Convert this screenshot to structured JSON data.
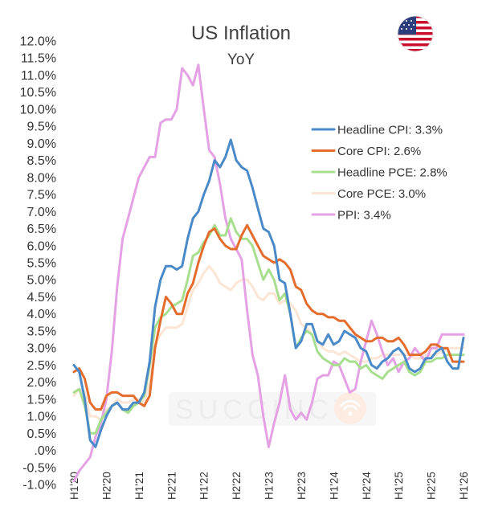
{
  "chart_data": {
    "type": "line",
    "title": "US Inflation",
    "subtitle": "YoY",
    "ylim": [
      -1.0,
      12.0
    ],
    "y_ticks": [
      12,
      11.5,
      11,
      10.5,
      10,
      9.5,
      9,
      8.5,
      8,
      7.5,
      7,
      6.5,
      6,
      5.5,
      5,
      4.5,
      4,
      3.5,
      3,
      2.5,
      2,
      1.5,
      1,
      0.5,
      0,
      -0.5,
      -1
    ],
    "y_tick_labels": [
      "12.0%",
      "11.5%",
      "11.0%",
      "10.5%",
      "10.0%",
      "9.5%",
      "9.0%",
      "8.5%",
      "8.0%",
      "7.5%",
      "7.0%",
      "6.5%",
      "6.0%",
      "5.5%",
      "5.0%",
      "4.5%",
      "4.0%",
      "3.5%",
      "3.0%",
      "2.5%",
      "2.0%",
      "1.5%",
      "1.0%",
      "0.5%",
      ".0%",
      "-0.5%",
      "-1.0%"
    ],
    "x_start": "Jan 2020",
    "x_ticks": [
      "H1'20",
      "H2'20",
      "H1'21",
      "H2'21",
      "H1'22",
      "H2'22",
      "H1'23",
      "H2'23",
      "H1'24",
      "H2'24",
      "H1'25",
      "H2'25",
      "H1'26"
    ],
    "x_tick_positions": [
      0,
      6,
      12,
      18,
      24,
      30,
      36,
      42,
      48,
      54,
      60,
      66,
      72
    ],
    "x_range": [
      0,
      72
    ],
    "series": [
      {
        "name": "Headline CPI",
        "legend": "Headline CPI: 3.3%",
        "color": "#4a8ac8",
        "values": [
          2.5,
          2.3,
          1.5,
          0.3,
          0.1,
          0.6,
          1.0,
          1.3,
          1.4,
          1.2,
          1.2,
          1.4,
          1.4,
          1.7,
          2.6,
          4.2,
          5.0,
          5.4,
          5.4,
          5.3,
          5.4,
          6.2,
          6.8,
          7.0,
          7.5,
          7.9,
          8.5,
          8.3,
          8.6,
          9.1,
          8.5,
          8.3,
          8.2,
          7.7,
          7.1,
          6.5,
          6.4,
          6.0,
          5.0,
          4.9,
          4.0,
          3.0,
          3.2,
          3.7,
          3.7,
          3.2,
          3.1,
          3.4,
          3.1,
          3.2,
          3.5,
          3.4,
          3.3,
          3.0,
          2.9,
          2.5,
          2.4,
          2.6,
          2.7,
          2.9,
          3.0,
          2.8,
          2.4,
          2.3,
          2.4,
          2.7,
          2.7,
          2.9,
          3.0,
          2.6,
          2.4,
          2.4,
          3.3
        ]
      },
      {
        "name": "Core CPI",
        "legend": "Core CPI: 2.6%",
        "color": "#e46c2c",
        "values": [
          2.3,
          2.4,
          2.1,
          1.4,
          1.2,
          1.2,
          1.6,
          1.7,
          1.7,
          1.6,
          1.6,
          1.6,
          1.4,
          1.3,
          1.6,
          3.0,
          3.8,
          4.5,
          4.3,
          4.0,
          4.0,
          4.6,
          4.9,
          5.5,
          6.0,
          6.4,
          6.5,
          6.2,
          6.0,
          5.9,
          5.9,
          6.3,
          6.6,
          6.3,
          6.0,
          5.7,
          5.6,
          5.5,
          5.6,
          5.5,
          5.3,
          4.8,
          4.7,
          4.3,
          4.1,
          4.0,
          4.0,
          3.9,
          3.9,
          3.8,
          3.8,
          3.6,
          3.4,
          3.3,
          3.2,
          3.2,
          3.3,
          3.3,
          3.2,
          3.2,
          3.3,
          3.1,
          2.8,
          2.8,
          2.8,
          2.9,
          3.1,
          3.1,
          3.0,
          3.0,
          2.6,
          2.6,
          2.6
        ]
      },
      {
        "name": "Headline PCE",
        "legend": "Headline PCE: 2.8%",
        "color": "#a7df8f",
        "values": [
          1.7,
          1.8,
          1.3,
          0.5,
          0.5,
          0.9,
          1.1,
          1.3,
          1.4,
          1.2,
          1.1,
          1.3,
          1.4,
          1.6,
          2.5,
          3.6,
          3.9,
          4.0,
          4.2,
          4.3,
          4.4,
          5.0,
          5.7,
          5.8,
          6.1,
          6.3,
          6.6,
          6.3,
          6.3,
          6.8,
          6.4,
          6.2,
          6.2,
          6.0,
          5.5,
          5.0,
          5.3,
          5.0,
          4.4,
          4.6,
          4.0,
          3.0,
          3.3,
          3.5,
          3.4,
          2.9,
          2.7,
          2.6,
          2.5,
          2.5,
          2.7,
          2.6,
          2.6,
          2.4,
          2.5,
          2.3,
          2.2,
          2.1,
          2.3,
          2.4,
          2.5,
          2.6,
          2.3,
          2.2,
          2.3,
          2.6,
          2.6,
          2.7,
          2.7,
          2.8,
          2.8,
          2.8,
          2.8
        ]
      },
      {
        "name": "Core PCE",
        "legend": "Core PCE: 3.0%",
        "color": "#fbe5d4",
        "values": [
          1.6,
          1.8,
          1.7,
          1.0,
          1.0,
          0.9,
          1.2,
          1.3,
          1.5,
          1.4,
          1.4,
          1.5,
          1.5,
          1.4,
          2.0,
          3.1,
          3.4,
          3.6,
          3.6,
          3.6,
          3.7,
          4.2,
          4.7,
          4.9,
          5.2,
          5.4,
          5.2,
          4.9,
          4.8,
          4.7,
          4.9,
          5.0,
          5.0,
          4.8,
          4.5,
          4.4,
          4.6,
          4.6,
          4.3,
          4.4,
          4.3,
          4.1,
          3.7,
          3.6,
          3.4,
          3.2,
          3.0,
          2.9,
          2.9,
          2.8,
          2.9,
          2.8,
          2.7,
          2.6,
          2.6,
          2.7,
          2.7,
          2.8,
          2.8,
          2.8,
          2.8,
          2.8,
          2.8,
          2.7,
          2.7,
          2.8,
          2.8,
          2.8,
          2.9,
          3.0,
          3.0,
          3.0,
          3.0
        ]
      },
      {
        "name": "PPI",
        "legend": "PPI: 3.4%",
        "color": "#e4a1e4",
        "values": [
          -0.9,
          -0.6,
          -0.4,
          -0.2,
          0.4,
          0.8,
          1.5,
          2.9,
          4.8,
          6.2,
          6.8,
          7.4,
          8.0,
          8.3,
          8.6,
          8.6,
          9.6,
          9.7,
          9.7,
          10.0,
          11.2,
          11.0,
          10.7,
          11.3,
          10.0,
          8.8,
          8.6,
          7.8,
          6.8,
          6.2,
          5.9,
          5.6,
          4.1,
          2.8,
          2.2,
          1.0,
          0.1,
          0.8,
          1.4,
          2.2,
          1.2,
          0.9,
          1.1,
          0.9,
          1.4,
          2.1,
          2.2,
          2.2,
          2.6,
          2.5,
          2.1,
          1.7,
          1.8,
          2.6,
          3.2,
          3.8,
          3.4,
          2.9,
          2.5,
          2.7,
          2.3,
          2.6,
          2.7,
          3.0,
          2.8,
          2.6,
          3.0,
          3.0,
          3.4,
          3.4,
          3.4,
          3.4,
          3.4
        ]
      }
    ],
    "legend_placement": "right",
    "grid": false
  },
  "watermark": "SUCCINCT",
  "flag_icon": "us-flag-icon"
}
